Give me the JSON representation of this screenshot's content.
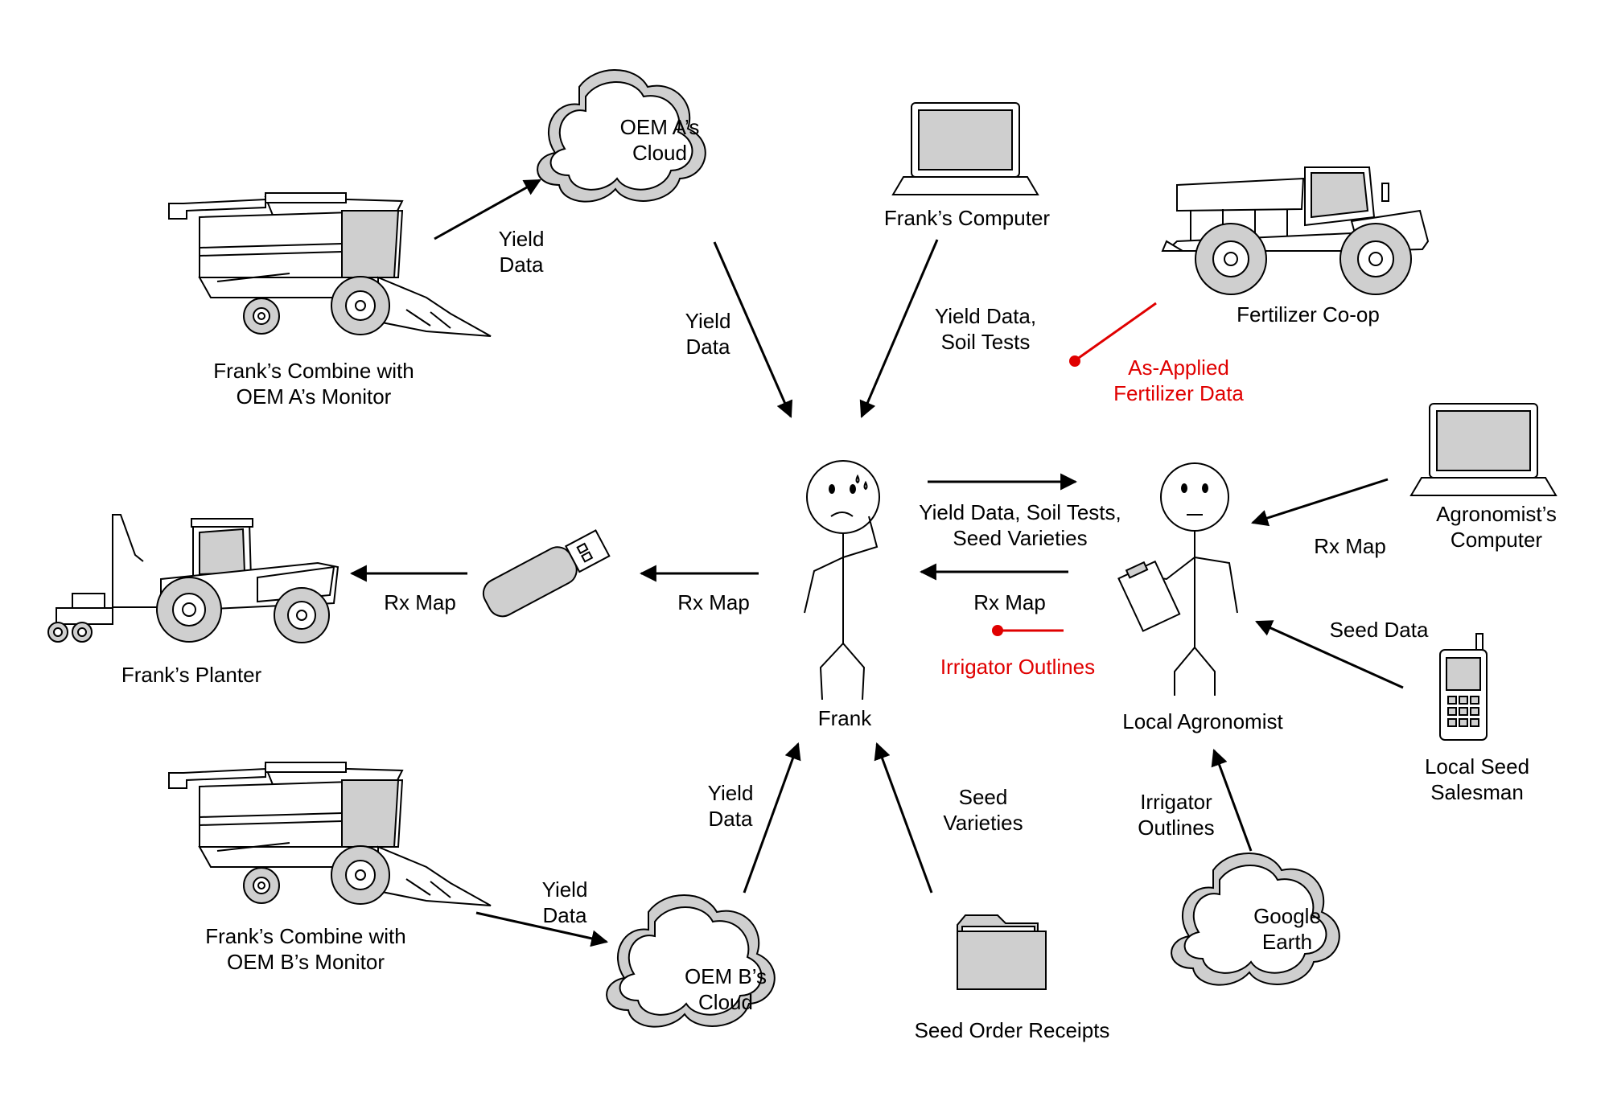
{
  "nodes": {
    "oem_a_cloud": [
      "OEM A’s",
      "Cloud"
    ],
    "oem_b_cloud": [
      "OEM B’s",
      "Cloud"
    ],
    "google_earth": [
      "Google",
      "Earth"
    ],
    "franks_computer": "Frank’s Computer",
    "fertilizer_coop": "Fertilizer Co-op",
    "combine_a": [
      "Frank’s Combine with",
      "OEM A’s Monitor"
    ],
    "combine_b": [
      "Frank’s Combine with",
      "OEM B’s Monitor"
    ],
    "planter": "Frank’s Planter",
    "frank": "Frank",
    "local_agronomist": "Local Agronomist",
    "agronomists_computer": [
      "Agronomist’s",
      "Computer"
    ],
    "seed_salesman": [
      "Local Seed",
      "Salesman"
    ],
    "seed_order_receipts": "Seed Order Receipts"
  },
  "edges": {
    "combine_a_to_cloud": [
      "Yield",
      "Data"
    ],
    "cloud_a_to_frank": [
      "Yield",
      "Data"
    ],
    "computer_to_frank": [
      "Yield Data,",
      "Soil Tests"
    ],
    "coop_to_agronomist": [
      "As-Applied",
      "Fertilizer Data"
    ],
    "frank_to_agronomist": [
      "Yield Data, Soil Tests,",
      "Seed Varieties"
    ],
    "agronomist_to_frank": "Rx Map",
    "irrigator_outlines_red": "Irrigator Outlines",
    "frank_to_usb": "Rx Map",
    "usb_to_planter": "Rx Map",
    "agro_computer_to_agronomist": "Rx Map",
    "salesman_to_agronomist": "Seed Data",
    "google_to_agronomist": [
      "Irrigator",
      "Outlines"
    ],
    "combine_b_to_cloud": [
      "Yield",
      "Data"
    ],
    "cloud_b_to_frank": [
      "Yield",
      "Data"
    ],
    "receipts_to_frank": [
      "Seed",
      "Varieties"
    ]
  },
  "colors": {
    "ink": "#000000",
    "fill_grey": "#cfcfcf",
    "highlight_red": "#e00000"
  }
}
